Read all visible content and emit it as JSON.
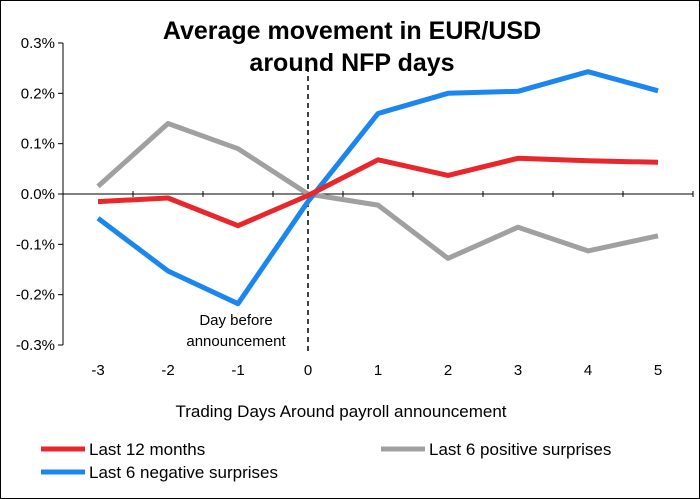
{
  "chart_data": {
    "type": "line",
    "title_line1": "Average movement in EUR/USD",
    "title_line2": "around NFP days",
    "xlabel": "Trading Days Around payroll announcement",
    "ylabel": "",
    "x": [
      -3,
      -2,
      -1,
      0,
      1,
      2,
      3,
      4,
      5
    ],
    "x_tick_labels": [
      "-3",
      "-2",
      "-1",
      "0",
      "1",
      "2",
      "3",
      "4",
      "5"
    ],
    "ylim": [
      -0.3,
      0.3
    ],
    "y_ticks": [
      0.3,
      0.2,
      0.1,
      0.0,
      -0.1,
      -0.2,
      -0.3
    ],
    "y_tick_labels": [
      "0.3%",
      "0.2%",
      "0.1%",
      "0.0%",
      "-0.1%",
      "-0.2%",
      "-0.3%"
    ],
    "grid": false,
    "legend_position": "bottom",
    "annotation_line1": "Day before",
    "annotation_line2": "announcement",
    "series": [
      {
        "name": "Last 12 months",
        "color": "#e8262b",
        "values": [
          -0.015,
          -0.008,
          -0.063,
          -0.003,
          0.068,
          0.037,
          0.071,
          0.066,
          0.063
        ]
      },
      {
        "name": "Last 6 positive surprises",
        "color": "#a0a0a0",
        "values": [
          0.015,
          0.14,
          0.09,
          0.0,
          -0.022,
          -0.128,
          -0.066,
          -0.113,
          -0.083
        ]
      },
      {
        "name": "Last 6 negative surprises",
        "color": "#1b86f0",
        "values": [
          -0.048,
          -0.153,
          -0.218,
          -0.015,
          0.16,
          0.2,
          0.204,
          0.243,
          0.205
        ]
      }
    ]
  }
}
